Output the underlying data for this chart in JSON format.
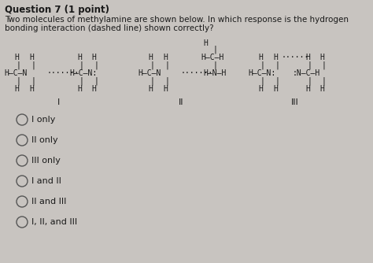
{
  "title": "Question 7 (1 point)",
  "subtitle1": "Two molecules of methylamine are shown below. In which response is the ​hydrogen",
  "subtitle2": "bonding interaction (dashed line) shown correctly?",
  "bg_color": "#c8c4c0",
  "text_color": "#1a1a1a",
  "options": [
    "I only",
    "II only",
    "III only",
    "I and II",
    "II and III",
    "I, II, and III"
  ]
}
